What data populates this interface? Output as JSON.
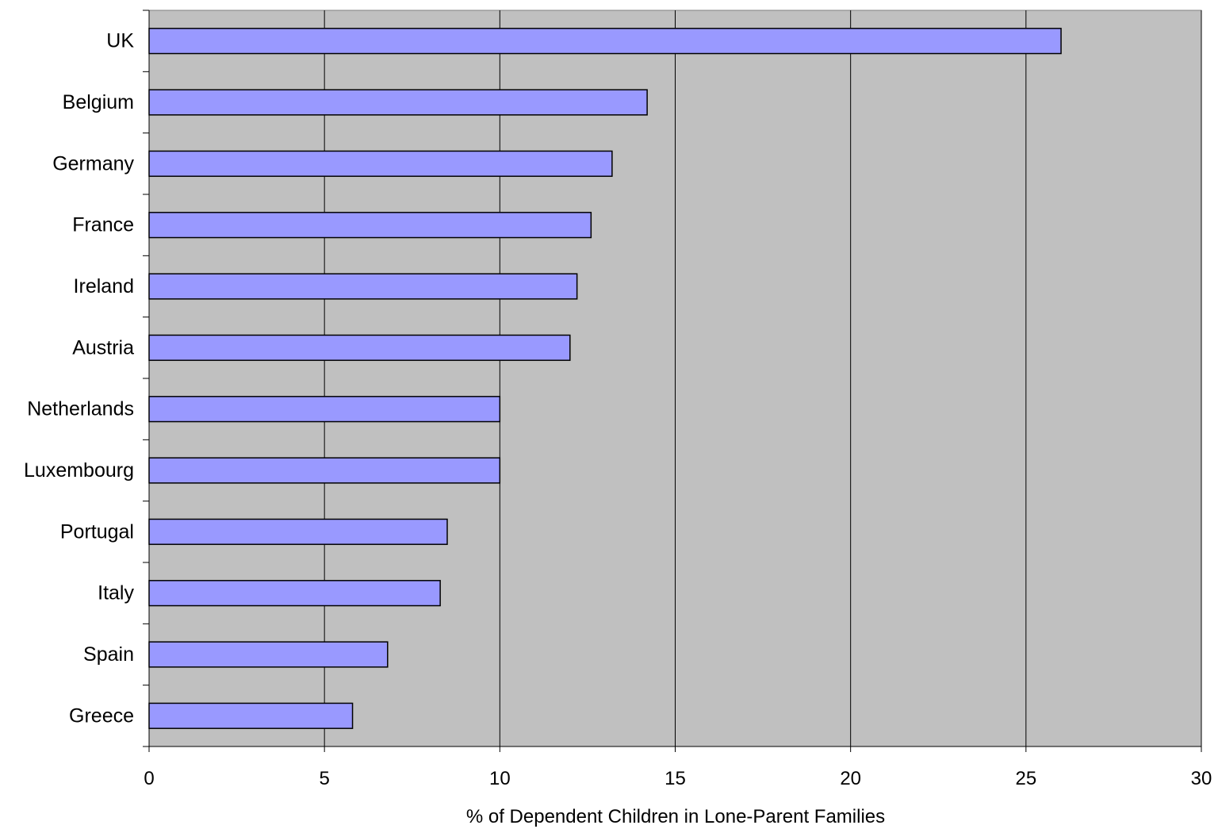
{
  "chart_data": {
    "type": "bar",
    "orientation": "horizontal",
    "categories": [
      "UK",
      "Belgium",
      "Germany",
      "France",
      "Ireland",
      "Austria",
      "Netherlands",
      "Luxembourg",
      "Portugal",
      "Italy",
      "Spain",
      "Greece"
    ],
    "values": [
      26.0,
      14.2,
      13.2,
      12.6,
      12.2,
      12.0,
      10.0,
      10.0,
      8.5,
      8.3,
      6.8,
      5.8
    ],
    "xlabel": "% of Dependent Children in Lone-Parent Families",
    "ylabel": "",
    "xlim": [
      0,
      30
    ],
    "xticks": [
      0,
      5,
      10,
      15,
      20,
      25,
      30
    ],
    "xtick_labels": [
      "0",
      "5",
      "10",
      "15",
      "20",
      "25",
      "30"
    ],
    "grid": "vertical",
    "legend": "none",
    "colors": {
      "bar_fill": "#9999ff",
      "bar_stroke": "#000000",
      "plot_background": "#c0c0c0",
      "gridline": "#000000"
    }
  }
}
